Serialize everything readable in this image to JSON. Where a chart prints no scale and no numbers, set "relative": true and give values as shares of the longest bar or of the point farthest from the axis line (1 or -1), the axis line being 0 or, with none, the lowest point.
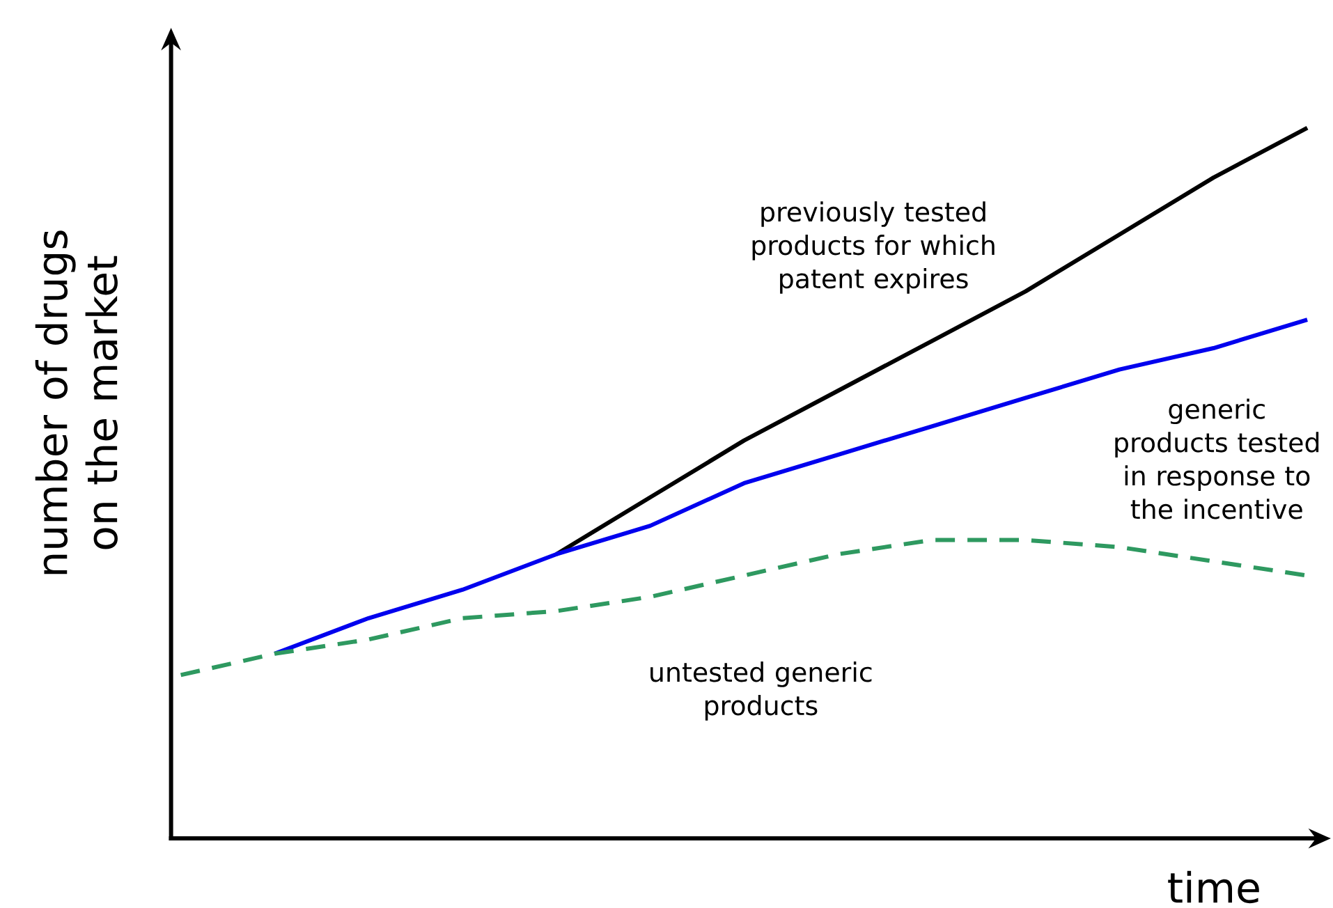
{
  "chart_data": {
    "type": "line",
    "relative": true,
    "xlabel": "time",
    "ylabel": "number of drugs on the market",
    "categories": [
      null,
      null,
      null,
      null,
      null,
      null,
      null,
      null,
      null,
      null,
      null,
      null,
      null
    ],
    "series": [
      {
        "name": "previously tested products for which patent expires",
        "color": "#000000",
        "line_style": "solid",
        "values": [
          null,
          null,
          null,
          null,
          0.4,
          0.48,
          0.56,
          0.63,
          0.7,
          0.77,
          0.85,
          0.93,
          1.0
        ]
      },
      {
        "name": "generic products tested in response to the incentive",
        "color": "#0000ee",
        "line_style": "solid",
        "values": [
          null,
          0.26,
          0.31,
          0.35,
          0.4,
          0.44,
          0.5,
          0.54,
          0.58,
          0.62,
          0.66,
          0.69,
          0.73
        ]
      },
      {
        "name": "untested generic products",
        "color": "#2e9960",
        "line_style": "dashed",
        "values": [
          0.23,
          0.26,
          0.28,
          0.31,
          0.32,
          0.34,
          0.37,
          0.4,
          0.42,
          0.42,
          0.41,
          0.39,
          0.37
        ]
      }
    ]
  }
}
